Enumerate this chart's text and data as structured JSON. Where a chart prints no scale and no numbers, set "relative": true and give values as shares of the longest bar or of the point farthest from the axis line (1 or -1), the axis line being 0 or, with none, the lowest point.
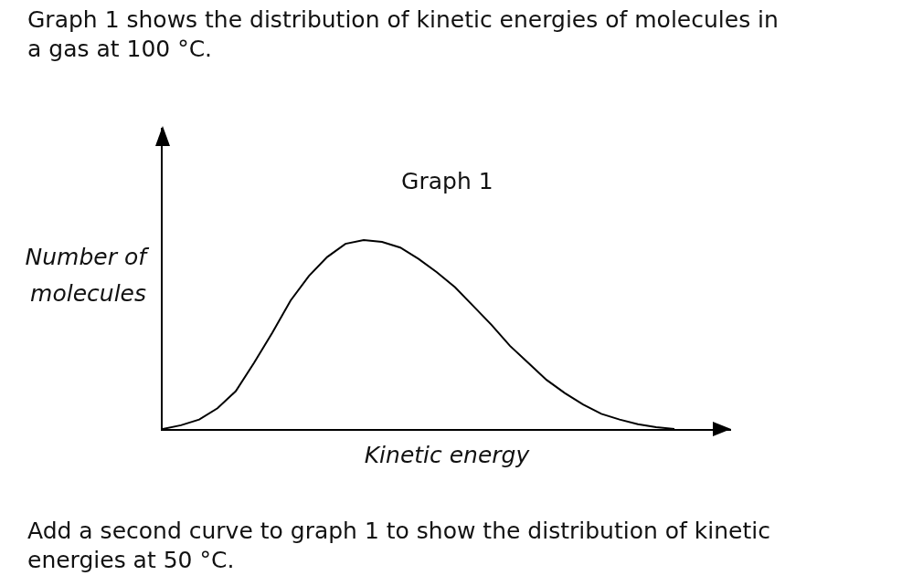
{
  "chart_data": {
    "type": "line",
    "relative": true,
    "title": "Graph 1",
    "xlabel": "Kinetic energy",
    "ylabel": "Number of molecules",
    "annotations": [
      "Graph 1 shows the distribution of kinetic energies of molecules in a gas at 100 °C.",
      "Add a second curve to graph 1 to show the distribution of kinetic energies at 50 °C."
    ],
    "categories": [
      null,
      null,
      null,
      null,
      null,
      null,
      null,
      null,
      null,
      null,
      null,
      null,
      null,
      null,
      null,
      null,
      null,
      null,
      null,
      null,
      null,
      null,
      null,
      null,
      null,
      null,
      null,
      null,
      null,
      null,
      null,
      null
    ],
    "series": [
      {
        "color": "#000000",
        "values": [
          0,
          0.02,
          0.05,
          0.11,
          0.2,
          0.35,
          0.51,
          0.68,
          0.81,
          0.91,
          0.98,
          1,
          0.99,
          0.96,
          0.9,
          0.83,
          0.75,
          0.65,
          0.55,
          0.44,
          0.35,
          0.26,
          0.19,
          0.13,
          0.08,
          0.05,
          0.025,
          0.01,
          0,
          null,
          null,
          null
        ]
      }
    ],
    "marker": "none",
    "line_style": "solid"
  }
}
